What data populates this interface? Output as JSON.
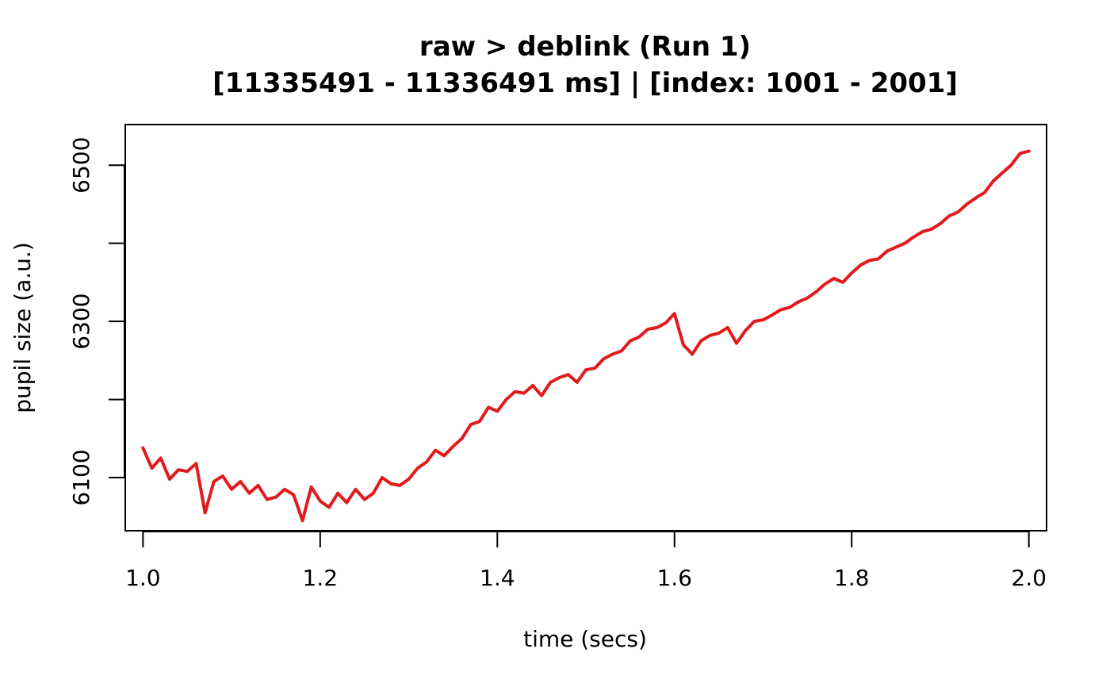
{
  "chart_data": {
    "type": "line",
    "title": "raw > deblink (Run 1)",
    "subtitle": "[11335491 - 11336491 ms] | [index: 1001 - 2001]",
    "xlabel": "time (secs)",
    "ylabel": "pupil size (a.u.)",
    "xlim": [
      0.98,
      2.02
    ],
    "ylim": [
      6032,
      6552
    ],
    "x_ticks": [
      1.0,
      1.2,
      1.4,
      1.6,
      1.8,
      2.0
    ],
    "x_tick_labels": [
      "1.0",
      "1.2",
      "1.4",
      "1.6",
      "1.8",
      "2.0"
    ],
    "y_ticks": [
      6100,
      6200,
      6300,
      6400,
      6500
    ],
    "y_tick_labels": [
      "6100",
      "",
      "6300",
      "",
      "6500"
    ],
    "grid": false,
    "colors": {
      "line": "#e31a1c",
      "axis": "#000000"
    },
    "series": [
      {
        "x": [
          1.0,
          1.01,
          1.02,
          1.03,
          1.04,
          1.05,
          1.06,
          1.07,
          1.08,
          1.09,
          1.1,
          1.11,
          1.12,
          1.13,
          1.14,
          1.15,
          1.16,
          1.17,
          1.18,
          1.19,
          1.2,
          1.21,
          1.22,
          1.23,
          1.24,
          1.25,
          1.26,
          1.27,
          1.28,
          1.29,
          1.3,
          1.31,
          1.32,
          1.33,
          1.34,
          1.35,
          1.36,
          1.37,
          1.38,
          1.39,
          1.4,
          1.41,
          1.42,
          1.43,
          1.44,
          1.45,
          1.46,
          1.47,
          1.48,
          1.49,
          1.5,
          1.51,
          1.52,
          1.53,
          1.54,
          1.55,
          1.56,
          1.57,
          1.58,
          1.59,
          1.6,
          1.61,
          1.62,
          1.63,
          1.64,
          1.65,
          1.66,
          1.67,
          1.68,
          1.69,
          1.7,
          1.71,
          1.72,
          1.73,
          1.74,
          1.75,
          1.76,
          1.77,
          1.78,
          1.79,
          1.8,
          1.81,
          1.82,
          1.83,
          1.84,
          1.85,
          1.86,
          1.87,
          1.88,
          1.89,
          1.9,
          1.91,
          1.92,
          1.93,
          1.94,
          1.95,
          1.96,
          1.97,
          1.98,
          1.99,
          2.0
        ],
        "values": [
          6138,
          6112,
          6125,
          6098,
          6110,
          6108,
          6118,
          6055,
          6095,
          6102,
          6085,
          6095,
          6080,
          6090,
          6072,
          6075,
          6085,
          6078,
          6045,
          6088,
          6070,
          6062,
          6080,
          6068,
          6085,
          6072,
          6080,
          6100,
          6092,
          6090,
          6098,
          6112,
          6120,
          6135,
          6128,
          6140,
          6150,
          6168,
          6172,
          6190,
          6185,
          6200,
          6210,
          6208,
          6218,
          6205,
          6222,
          6228,
          6232,
          6222,
          6238,
          6240,
          6252,
          6258,
          6262,
          6275,
          6280,
          6290,
          6292,
          6298,
          6310,
          6270,
          6258,
          6275,
          6282,
          6285,
          6292,
          6272,
          6288,
          6300,
          6302,
          6308,
          6315,
          6318,
          6325,
          6330,
          6338,
          6348,
          6355,
          6350,
          6362,
          6372,
          6378,
          6380,
          6390,
          6395,
          6400,
          6408,
          6415,
          6418,
          6425,
          6435,
          6440,
          6450,
          6458,
          6465,
          6480,
          6490,
          6500,
          6515,
          6518
        ]
      }
    ]
  }
}
